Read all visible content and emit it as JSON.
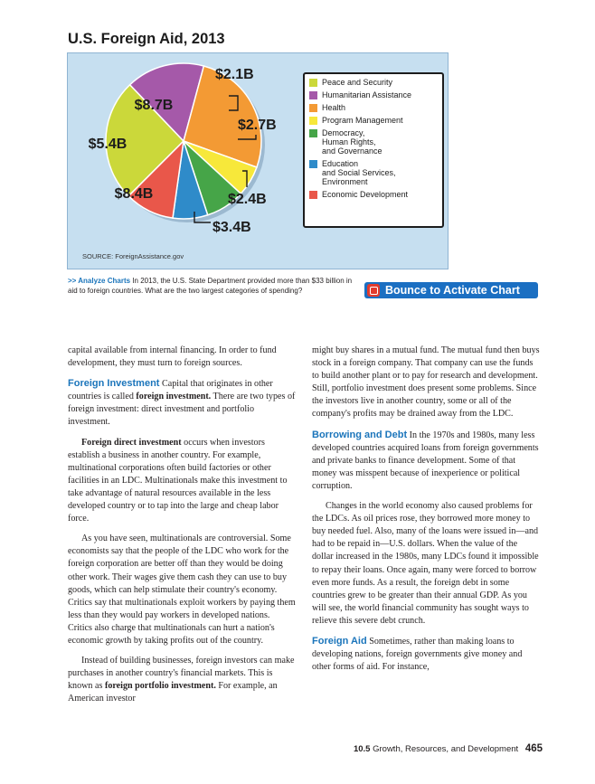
{
  "figure": {
    "title": "U.S. Foreign Aid, 2013",
    "source": "SOURCE: ForeignAssistance.gov"
  },
  "chart_data": {
    "type": "pie",
    "title": "U.S. Foreign Aid, 2013",
    "labels": [
      "Peace and Security",
      "Humanitarian Assistance",
      "Health",
      "Program Management",
      "Democracy, Human Rights, and Governance",
      "Education and Social Services, Environment",
      "Economic Development"
    ],
    "legend_labels": [
      "Peace and Security",
      "Humanitarian Assistance",
      "Health",
      "Program Management",
      "Democracy,\nHuman Rights,\nand Governance",
      "Education\nand Social Services,\nEnvironment",
      "Economic Development"
    ],
    "values": [
      8.4,
      5.4,
      8.7,
      2.1,
      2.7,
      2.4,
      3.4
    ],
    "value_labels": [
      "$8.4B",
      "$5.4B",
      "$8.7B",
      "$2.1B",
      "$2.7B",
      "$2.4B",
      "$3.4B"
    ],
    "colors": [
      "#cbd83a",
      "#a559a9",
      "#f39a34",
      "#f7e83a",
      "#46a548",
      "#2f8bc9",
      "#e9574a"
    ],
    "legend_placement": "right"
  },
  "caption": {
    "lead": ">> Analyze Charts",
    "text": "In 2013, the U.S. State Department provided more than $33 billion in aid to foreign countries. What are the two largest categories of spending?"
  },
  "activate_button": {
    "label": "Bounce to Activate Chart"
  },
  "left_column": {
    "p1": "capital available from internal financing. In order to fund development, they must turn to foreign sources.",
    "p2_head": "Foreign Investment",
    "p2_a": "Capital that originates in other countries is called",
    "p2_term": "foreign investment.",
    "p2_b": "There are two types of foreign investment: direct investment and portfolio investment.",
    "p3_term": "Foreign direct investment",
    "p3_text": "occurs when investors establish a business in another country. For example, multinational corporations often build factories or other facilities in an LDC. Multinationals make this investment to take advantage of natural resources available in the less developed country or to tap into the large and cheap labor force.",
    "p4": "As you have seen, multinationals are controversial. Some economists say that the people of the LDC who work for the foreign corporation are better off than they would be doing other work. Their wages give them cash they can use to buy goods, which can help stimulate their country's economy. Critics say that multinationals exploit workers by paying them less than they would pay workers in developed nations. Critics also charge that multinationals can hurt a nation's economic growth by taking profits out of the country.",
    "p5_a": "Instead of building businesses, foreign investors can make purchases in another country's financial markets. This is known as",
    "p5_term": "foreign portfolio investment.",
    "p5_b": "For example, an American investor"
  },
  "right_column": {
    "p1": "might buy shares in a mutual fund. The mutual fund then buys stock in a foreign company. That company can use the funds to build another plant or to pay for research and development. Still, portfolio investment does present some problems. Since the investors live in another country, some or all of the company's profits may be drained away from the LDC.",
    "p2_head": "Borrowing and Debt",
    "p2_text": "In the 1970s and 1980s, many less developed countries acquired loans from foreign governments and private banks to finance development. Some of that money was misspent because of inexperience or political corruption.",
    "p3": "Changes in the world economy also caused problems for the LDCs. As oil prices rose, they borrowed more money to buy needed fuel. Also, many of the loans were issued in—and had to be repaid in—U.S. dollars. When the value of the dollar increased in the 1980s, many LDCs found it impossible to repay their loans. Once again, many were forced to borrow even more funds. As a result, the foreign debt in some countries grew to be greater than their annual GDP. As you will see, the world financial community has sought ways to relieve this severe debt crunch.",
    "p4_head": "Foreign Aid",
    "p4_text": "Sometimes, rather than making loans to developing nations, foreign governments give money and other forms of aid. For instance,"
  },
  "footer": {
    "section": "10.5",
    "section_title": "Growth, Resources, and Development",
    "page": "465"
  }
}
